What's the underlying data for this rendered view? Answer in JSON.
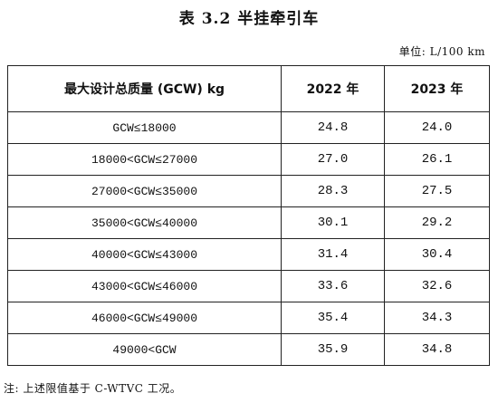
{
  "title": "表 3.2 半挂牵引车",
  "unit": "单位: L/100 km",
  "table": {
    "headers": [
      "最大设计总质量 (GCW) kg",
      "2022 年",
      "2023 年"
    ],
    "rows": [
      {
        "range": "GCW≤18000",
        "y2022": "24.8",
        "y2023": "24.0"
      },
      {
        "range": "18000<GCW≤27000",
        "y2022": "27.0",
        "y2023": "26.1"
      },
      {
        "range": "27000<GCW≤35000",
        "y2022": "28.3",
        "y2023": "27.5"
      },
      {
        "range": "35000<GCW≤40000",
        "y2022": "30.1",
        "y2023": "29.2"
      },
      {
        "range": "40000<GCW≤43000",
        "y2022": "31.4",
        "y2023": "30.4"
      },
      {
        "range": "43000<GCW≤46000",
        "y2022": "33.6",
        "y2023": "32.6"
      },
      {
        "range": "46000<GCW≤49000",
        "y2022": "35.4",
        "y2023": "34.3"
      },
      {
        "range": "49000<GCW",
        "y2022": "35.9",
        "y2023": "34.8"
      }
    ]
  },
  "note": "注: 上述限值基于 C-WTVC 工况。"
}
